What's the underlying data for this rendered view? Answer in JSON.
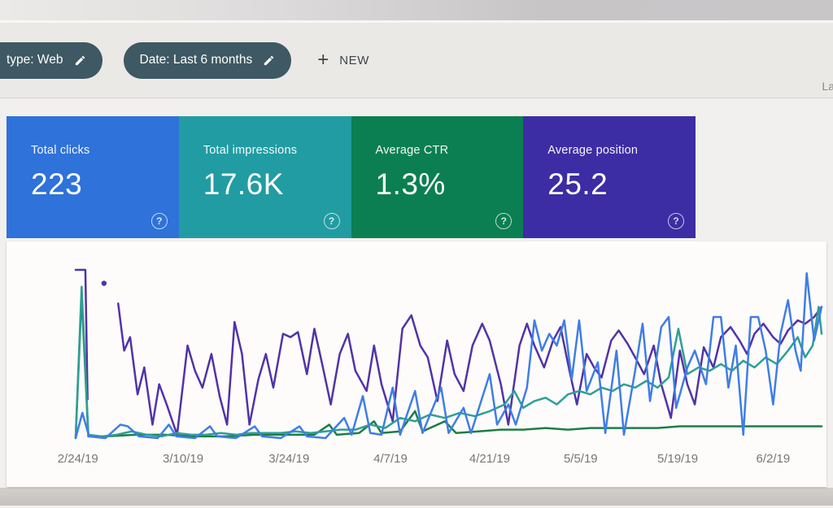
{
  "header": {
    "partial_right_text": "La"
  },
  "filters": {
    "type_chip": {
      "label": "type: Web",
      "icon": "pencil-edit"
    },
    "date_chip": {
      "label": "Date: Last 6 months",
      "icon": "pencil-edit"
    },
    "new_button": {
      "plus": "+",
      "label": "NEW"
    }
  },
  "cards": [
    {
      "label": "Total clicks",
      "value": "223",
      "color": "#2e72da",
      "help": "?"
    },
    {
      "label": "Total impressions",
      "value": "17.6K",
      "color": "#219ca3",
      "help": "?"
    },
    {
      "label": "Average CTR",
      "value": "1.3%",
      "color": "#0b7f51",
      "help": "?"
    },
    {
      "label": "Average position",
      "value": "25.2",
      "color": "#3c2da4",
      "help": "?"
    }
  ],
  "chart_data": {
    "type": "line",
    "title": "",
    "xlabel": "",
    "ylabel": "",
    "grid": false,
    "legend": "none",
    "y_unit": "percent of chart height (no y-axis shown; values estimated from pixels)",
    "ylim": [
      0,
      100
    ],
    "x_ticks": [
      {
        "label": "2/24/19",
        "frac": 0.3
      },
      {
        "label": "3/10/19",
        "frac": 14.4
      },
      {
        "label": "3/24/19",
        "frac": 28.6
      },
      {
        "label": "4/7/19",
        "frac": 42.2
      },
      {
        "label": "4/21/19",
        "frac": 55.5
      },
      {
        "label": "5/5/19",
        "frac": 67.7
      },
      {
        "label": "5/19/19",
        "frac": 80.7
      },
      {
        "label": "6/2/19",
        "frac": 93.5
      }
    ],
    "tick_color": "#797672",
    "series": [
      {
        "name": "Clicks",
        "color": "#3f7de8",
        "points": [
          [
            0,
            0
          ],
          [
            0.9,
            15
          ],
          [
            1.8,
            1
          ],
          [
            4,
            0
          ],
          [
            6,
            8
          ],
          [
            7,
            7
          ],
          [
            8.5,
            1
          ],
          [
            11,
            0
          ],
          [
            12.5,
            8
          ],
          [
            13.5,
            1
          ],
          [
            16,
            0
          ],
          [
            18,
            7
          ],
          [
            19,
            1
          ],
          [
            21.5,
            0
          ],
          [
            24,
            7
          ],
          [
            25,
            1
          ],
          [
            27.5,
            0
          ],
          [
            30,
            7
          ],
          [
            31,
            1
          ],
          [
            33.5,
            0
          ],
          [
            36,
            12
          ],
          [
            37,
            2
          ],
          [
            38.5,
            25
          ],
          [
            39.5,
            3
          ],
          [
            41,
            2
          ],
          [
            42.5,
            30
          ],
          [
            43.5,
            2
          ],
          [
            45.5,
            28
          ],
          [
            46.5,
            3
          ],
          [
            49,
            30
          ],
          [
            50,
            3
          ],
          [
            52,
            18
          ],
          [
            53,
            3
          ],
          [
            55.5,
            38
          ],
          [
            56.5,
            8
          ],
          [
            58,
            20
          ],
          [
            59,
            8
          ],
          [
            60.5,
            30
          ],
          [
            61.5,
            70
          ],
          [
            62.5,
            52
          ],
          [
            63.5,
            62
          ],
          [
            64.5,
            55
          ],
          [
            65.5,
            70
          ],
          [
            66.5,
            35
          ],
          [
            67.5,
            70
          ],
          [
            68.5,
            28
          ],
          [
            70,
            45
          ],
          [
            71,
            3
          ],
          [
            72.5,
            52
          ],
          [
            73.5,
            2
          ],
          [
            75,
            40
          ],
          [
            76,
            68
          ],
          [
            77,
            22
          ],
          [
            78.5,
            66
          ],
          [
            79.5,
            72
          ],
          [
            80.5,
            18
          ],
          [
            82,
            42
          ],
          [
            83,
            52
          ],
          [
            84.5,
            32
          ],
          [
            85.5,
            72
          ],
          [
            86.5,
            72
          ],
          [
            87.5,
            30
          ],
          [
            88.5,
            55
          ],
          [
            89.5,
            2
          ],
          [
            90.5,
            72
          ],
          [
            91.5,
            72
          ],
          [
            92.5,
            52
          ],
          [
            93.5,
            20
          ],
          [
            94.5,
            62
          ],
          [
            95.5,
            82
          ],
          [
            96.5,
            52
          ],
          [
            97.2,
            40
          ],
          [
            98,
            98
          ],
          [
            99,
            58
          ],
          [
            100,
            78
          ]
        ]
      },
      {
        "name": "Impressions",
        "color": "#2e9e97",
        "points": [
          [
            0,
            0
          ],
          [
            0.8,
            90
          ],
          [
            1.7,
            2
          ],
          [
            3.5,
            1
          ],
          [
            5.5,
            2
          ],
          [
            7.5,
            4
          ],
          [
            9.5,
            2
          ],
          [
            11.5,
            1
          ],
          [
            13.5,
            3
          ],
          [
            15.5,
            2
          ],
          [
            17.5,
            2
          ],
          [
            19.5,
            3
          ],
          [
            21.5,
            2
          ],
          [
            23.5,
            3
          ],
          [
            25.5,
            3
          ],
          [
            27.5,
            3
          ],
          [
            29.5,
            4
          ],
          [
            31.5,
            3
          ],
          [
            33.5,
            4
          ],
          [
            35.5,
            5
          ],
          [
            37.5,
            5
          ],
          [
            39.5,
            8
          ],
          [
            41.5,
            6
          ],
          [
            43.5,
            12
          ],
          [
            45.5,
            10
          ],
          [
            47.5,
            14
          ],
          [
            49.5,
            12
          ],
          [
            51.5,
            15
          ],
          [
            53.5,
            13
          ],
          [
            55.5,
            16
          ],
          [
            57.5,
            20
          ],
          [
            58.8,
            28
          ],
          [
            60,
            18
          ],
          [
            61.5,
            22
          ],
          [
            63,
            24
          ],
          [
            64.5,
            20
          ],
          [
            66,
            26
          ],
          [
            67.5,
            28
          ],
          [
            69,
            26
          ],
          [
            70.5,
            30
          ],
          [
            72,
            28
          ],
          [
            73.5,
            32
          ],
          [
            75,
            30
          ],
          [
            76.5,
            34
          ],
          [
            78,
            30
          ],
          [
            79.5,
            36
          ],
          [
            80.8,
            65
          ],
          [
            82,
            38
          ],
          [
            83.5,
            42
          ],
          [
            85,
            40
          ],
          [
            86.5,
            44
          ],
          [
            88,
            40
          ],
          [
            89.5,
            46
          ],
          [
            91,
            42
          ],
          [
            92.5,
            48
          ],
          [
            94,
            44
          ],
          [
            95.5,
            52
          ],
          [
            96.8,
            60
          ],
          [
            97.8,
            48
          ],
          [
            98.8,
            55
          ],
          [
            99.6,
            78
          ],
          [
            100,
            62
          ]
        ]
      },
      {
        "name": "CTR",
        "color": "#1d7d46",
        "points": [
          [
            0,
            0
          ],
          [
            0.8,
            85
          ],
          [
            1.7,
            1
          ],
          [
            4,
            1
          ],
          [
            8,
            2
          ],
          [
            12,
            2
          ],
          [
            16,
            1
          ],
          [
            20,
            1
          ],
          [
            24,
            2
          ],
          [
            28,
            2
          ],
          [
            32,
            2
          ],
          [
            34,
            8
          ],
          [
            35,
            2
          ],
          [
            38,
            3
          ],
          [
            40,
            10
          ],
          [
            41,
            3
          ],
          [
            43.5,
            4
          ],
          [
            45.5,
            16
          ],
          [
            46.5,
            4
          ],
          [
            49.5,
            10
          ],
          [
            51,
            3
          ],
          [
            54,
            4
          ],
          [
            57,
            5
          ],
          [
            60,
            5
          ],
          [
            63,
            6
          ],
          [
            66,
            5
          ],
          [
            69,
            6
          ],
          [
            72,
            6
          ],
          [
            75,
            6
          ],
          [
            78,
            6
          ],
          [
            81,
            7
          ],
          [
            84,
            7
          ],
          [
            87,
            7
          ],
          [
            90,
            7
          ],
          [
            93,
            7
          ],
          [
            96,
            7
          ],
          [
            100,
            7
          ]
        ]
      },
      {
        "name": "Position",
        "color": "#5232a8",
        "points": [
          [
            0,
            100
          ],
          [
            1.3,
            100
          ],
          [
            1.6,
            23
          ],
          null,
          [
            3.8,
            92
          ],
          null,
          [
            5.7,
            80
          ],
          [
            6.5,
            52
          ],
          [
            7.3,
            60
          ],
          [
            8.3,
            26
          ],
          [
            9.2,
            42
          ],
          [
            10.3,
            8
          ],
          [
            11.2,
            32
          ],
          [
            12.2,
            20
          ],
          [
            13.6,
            2
          ],
          [
            15,
            55
          ],
          [
            16,
            40
          ],
          [
            17,
            30
          ],
          [
            18.2,
            50
          ],
          [
            19.3,
            25
          ],
          [
            20.3,
            8
          ],
          [
            21.3,
            69
          ],
          [
            22.3,
            50
          ],
          [
            23.3,
            8
          ],
          [
            24.5,
            35
          ],
          [
            25.5,
            50
          ],
          [
            26.5,
            30
          ],
          [
            27.8,
            62
          ],
          [
            28.8,
            60
          ],
          [
            29.8,
            63
          ],
          [
            31,
            38
          ],
          [
            32,
            65
          ],
          [
            33,
            45
          ],
          [
            34.2,
            20
          ],
          [
            35.4,
            50
          ],
          [
            36.5,
            62
          ],
          [
            37.5,
            40
          ],
          [
            39,
            28
          ],
          [
            40,
            55
          ],
          [
            41,
            32
          ],
          [
            42.5,
            10
          ],
          [
            43.8,
            65
          ],
          [
            45,
            73
          ],
          [
            46.2,
            55
          ],
          [
            47.2,
            48
          ],
          [
            48.5,
            22
          ],
          [
            49.8,
            58
          ],
          [
            50.8,
            38
          ],
          [
            52,
            28
          ],
          [
            53.2,
            55
          ],
          [
            54.5,
            68
          ],
          [
            55.5,
            58
          ],
          [
            57,
            32
          ],
          [
            58,
            8
          ],
          [
            59.5,
            55
          ],
          [
            60.5,
            68
          ],
          [
            61.5,
            55
          ],
          [
            62.8,
            42
          ],
          [
            64,
            58
          ],
          [
            65,
            66
          ],
          [
            66.2,
            40
          ],
          [
            67.2,
            20
          ],
          [
            68.5,
            50
          ],
          [
            69.5,
            42
          ],
          [
            70.5,
            36
          ],
          [
            71.8,
            58
          ],
          [
            72.8,
            64
          ],
          [
            74,
            56
          ],
          [
            75,
            48
          ],
          [
            76.2,
            38
          ],
          [
            77.5,
            55
          ],
          [
            78.5,
            32
          ],
          [
            79.8,
            12
          ],
          [
            81,
            52
          ],
          [
            82,
            32
          ],
          [
            83,
            20
          ],
          [
            84.2,
            54
          ],
          [
            85.5,
            42
          ],
          [
            86.5,
            60
          ],
          [
            87.8,
            66
          ],
          [
            89,
            58
          ],
          [
            90,
            50
          ],
          [
            91,
            62
          ],
          [
            92.2,
            68
          ],
          [
            93.5,
            60
          ],
          [
            94.5,
            56
          ],
          [
            95.5,
            64
          ],
          [
            96.8,
            70
          ],
          [
            97.8,
            68
          ],
          [
            99,
            72
          ],
          [
            100,
            78
          ]
        ]
      }
    ]
  }
}
